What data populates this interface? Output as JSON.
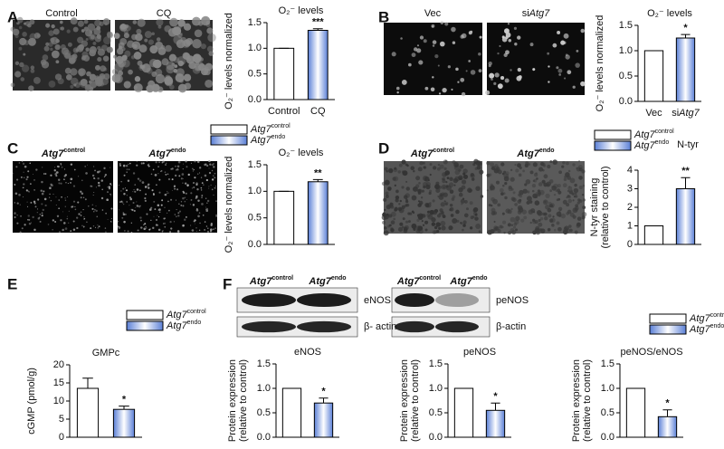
{
  "figure": {
    "panels": [
      "A",
      "B",
      "C",
      "D",
      "E",
      "F"
    ],
    "image_labels": [
      "Control",
      "CQ",
      "Vec",
      {
        "prefix": "si",
        "gene": "Atg7"
      },
      {
        "gene": "Atg7",
        "sup": "control"
      },
      {
        "gene": "Atg7",
        "sup": "endo"
      },
      {
        "gene": "Atg7",
        "sup": "control"
      },
      {
        "gene": "Atg7",
        "sup": "endo"
      },
      {
        "gene": "Atg7",
        "sup": "control"
      },
      {
        "gene": "Atg7",
        "sup": "endo"
      },
      {
        "gene": "Atg7",
        "sup": "control"
      },
      {
        "gene": "Atg7",
        "sup": "endo"
      }
    ],
    "blot_labels": [
      "eNOS",
      "β- actin",
      "peNOS",
      "β-actin"
    ]
  },
  "chart_data": [
    {
      "type": "bar",
      "title": "O₂⁻ levels",
      "ylabel": [
        "O₂⁻ levels normalized"
      ],
      "categories": [
        "Control",
        "CQ"
      ],
      "values": [
        1.0,
        1.35
      ],
      "errors": [
        0,
        0.03
      ],
      "colors": [
        "#ffffff",
        "#7f9fe0"
      ],
      "ylim": [
        0,
        1.5
      ],
      "yticks": [
        {
          "value": 0,
          "label": "0.0"
        },
        0.5,
        {
          "value": 1,
          "label": "1.0"
        },
        1.5
      ],
      "annotation": "***"
    },
    {
      "type": "bar",
      "title": "O₂⁻ levels",
      "ylabel": [
        "O₂⁻ levels normalized"
      ],
      "categories": [
        "Vec",
        {
          "prefix": "si",
          "gene": "Atg7"
        }
      ],
      "values": [
        1.0,
        1.25
      ],
      "errors": [
        0,
        0.07
      ],
      "colors": [
        "#ffffff",
        "#7f9fe0"
      ],
      "ylim": [
        0,
        1.5
      ],
      "yticks": [
        {
          "value": 0,
          "label": "0.0"
        },
        0.5,
        {
          "value": 1,
          "label": "1.0"
        },
        1.5
      ],
      "annotation": "*"
    },
    {
      "type": "bar",
      "title": "O₂⁻ levels",
      "ylabel": [
        "O₂⁻ levels normalized"
      ],
      "legend": [
        {
          "gene": "Atg7",
          "sup": "control"
        },
        {
          "gene": "Atg7",
          "sup": "endo"
        }
      ],
      "values": [
        1.0,
        1.18
      ],
      "errors": [
        0,
        0.04
      ],
      "colors": [
        "#ffffff",
        "#7f9fe0"
      ],
      "ylim": [
        0,
        1.5
      ],
      "yticks": [
        {
          "value": 0,
          "label": "0.0"
        },
        0.5,
        {
          "value": 1,
          "label": "1.0"
        },
        1.5
      ],
      "annotation": "**"
    },
    {
      "type": "bar",
      "title": "N-tyr",
      "ylabel": [
        "N-tyr staining",
        "(relative to control)"
      ],
      "legend": [
        {
          "gene": "Atg7",
          "sup": "control"
        },
        {
          "gene": "Atg7",
          "sup": "endo"
        }
      ],
      "values": [
        1.0,
        3.0
      ],
      "errors": [
        0,
        0.6
      ],
      "colors": [
        "#ffffff",
        "#7f9fe0"
      ],
      "ylim": [
        0,
        4
      ],
      "yticks": [
        0,
        1,
        2,
        3,
        4
      ],
      "annotation": "**"
    },
    {
      "type": "bar",
      "title": "GMPc",
      "ylabel": [
        "cGMP (pmol/g)"
      ],
      "legend": [
        {
          "gene": "Atg7",
          "sup": "control"
        },
        {
          "gene": "Atg7",
          "sup": "endo"
        }
      ],
      "values": [
        13.5,
        7.7
      ],
      "errors": [
        2.8,
        0.9
      ],
      "colors": [
        "#ffffff",
        "#7f9fe0"
      ],
      "ylim": [
        0,
        20
      ],
      "yticks": [
        0,
        5,
        10,
        15,
        20
      ],
      "annotation": "*"
    },
    {
      "type": "bar",
      "title": "eNOS",
      "ylabel": [
        "Protein expression",
        "(relative to control)"
      ],
      "values": [
        1.0,
        0.7
      ],
      "errors": [
        0,
        0.1
      ],
      "colors": [
        "#ffffff",
        "#7f9fe0"
      ],
      "ylim": [
        0,
        1.5
      ],
      "yticks": [
        {
          "value": 0,
          "label": "0.0"
        },
        0.5,
        {
          "value": 1,
          "label": "1.0"
        },
        1.5
      ],
      "annotation": "*"
    },
    {
      "type": "bar",
      "title": "peNOS",
      "ylabel": [
        "Protein expression",
        "(relative to control)"
      ],
      "values": [
        1.0,
        0.55
      ],
      "errors": [
        0,
        0.15
      ],
      "colors": [
        "#ffffff",
        "#7f9fe0"
      ],
      "ylim": [
        0,
        1.5
      ],
      "yticks": [
        {
          "value": 0,
          "label": "0.0"
        },
        0.5,
        {
          "value": 1,
          "label": "1.0"
        },
        1.5
      ],
      "annotation": "*"
    },
    {
      "type": "bar",
      "title": "peNOS/eNOS",
      "ylabel": [
        "Protein expression",
        "(relative to control)"
      ],
      "legend": [
        {
          "gene": "Atg7",
          "sup": "control"
        },
        {
          "gene": "Atg7",
          "sup": "endo"
        }
      ],
      "values": [
        1.0,
        0.42
      ],
      "errors": [
        0,
        0.14
      ],
      "colors": [
        "#ffffff",
        "#7f9fe0"
      ],
      "ylim": [
        0,
        1.5
      ],
      "yticks": [
        {
          "value": 0,
          "label": "0.0"
        },
        0.5,
        {
          "value": 1,
          "label": "1.0"
        },
        1.5
      ],
      "annotation": "*"
    }
  ]
}
